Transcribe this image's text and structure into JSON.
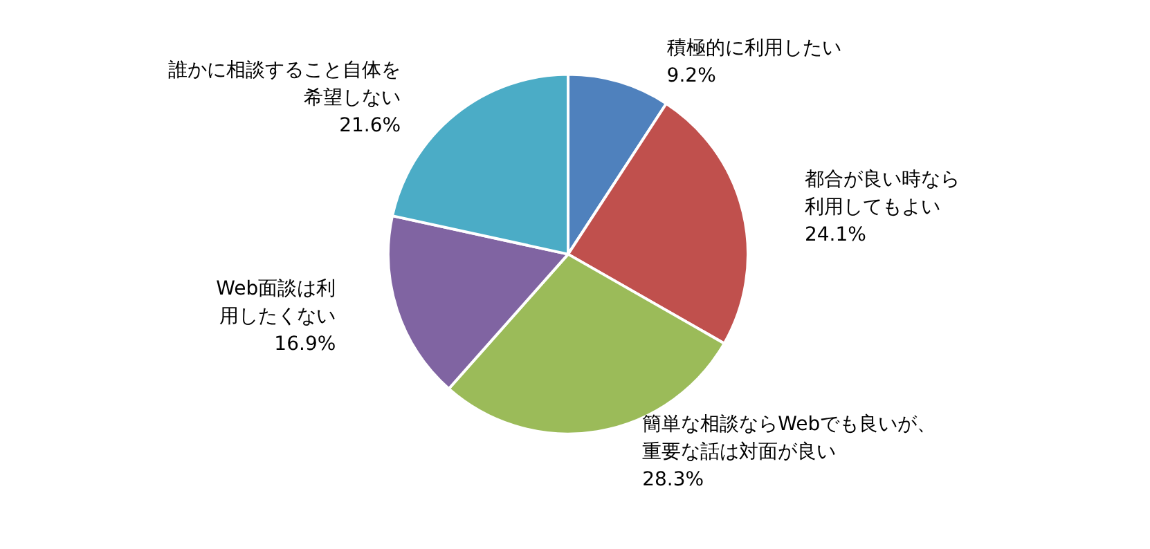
{
  "chart_data": {
    "type": "pie",
    "categories": [
      "積極的に利用したい",
      "都合が良い時なら利用してもよい",
      "簡単な相談ならWebでも良いが、重要な話は対面が良い",
      "Web面談は利用したくない",
      "誰かに相談すること自体を希望しない"
    ],
    "values": [
      9.2,
      24.1,
      28.3,
      16.9,
      21.6
    ],
    "value_labels": [
      "9.2%",
      "24.1%",
      "28.3%",
      "16.9%",
      "21.6%"
    ],
    "colors": [
      "#4f81bd",
      "#c0504d",
      "#9bbb59",
      "#8064a2",
      "#4bacc6"
    ],
    "legend": false
  }
}
